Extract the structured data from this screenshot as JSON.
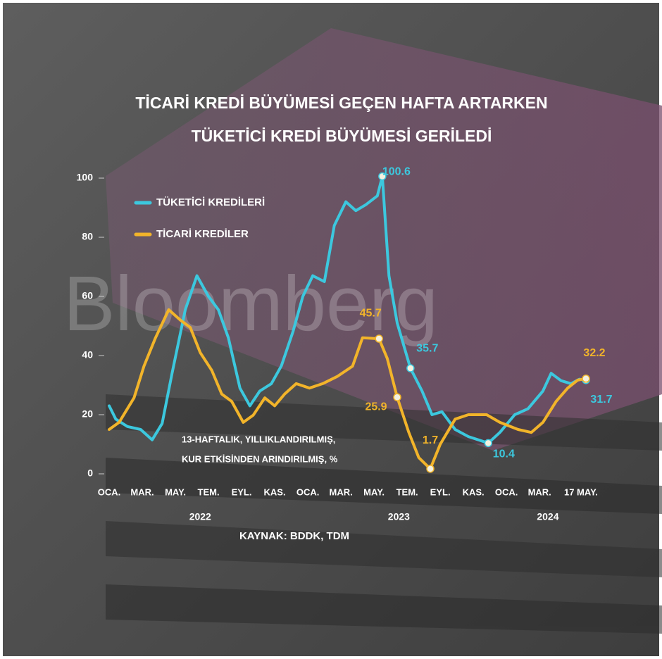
{
  "chart_data": {
    "type": "line",
    "title": [
      "TİCARİ KREDİ BÜYÜMESİ GEÇEN HAFTA ARTARKEN",
      "TÜKETİCİ KREDİ BÜYÜMESİ GERİLEDİ"
    ],
    "watermark": "Bloomberg",
    "note": [
      "13-HAFTALIK, YILLIKLANDIRILMIŞ,",
      "KUR ETKİSİNDEN ARINDIRILMIŞ, %"
    ],
    "source": "KAYNAK: BDDK, TDM",
    "xlim": [
      0,
      28.8
    ],
    "ylim": [
      0,
      100
    ],
    "yticks": [
      0,
      20,
      40,
      60,
      80,
      100
    ],
    "xticks": [
      {
        "value": 0,
        "label": "OCA."
      },
      {
        "value": 2,
        "label": "MAR."
      },
      {
        "value": 4,
        "label": "MAY."
      },
      {
        "value": 6,
        "label": "TEM."
      },
      {
        "value": 8,
        "label": "EYL."
      },
      {
        "value": 10,
        "label": "KAS."
      },
      {
        "value": 12,
        "label": "OCA."
      },
      {
        "value": 14,
        "label": "MAR."
      },
      {
        "value": 16,
        "label": "MAY."
      },
      {
        "value": 18,
        "label": "TEM."
      },
      {
        "value": 20,
        "label": "EYL."
      },
      {
        "value": 22,
        "label": "KAS."
      },
      {
        "value": 24,
        "label": "OCA."
      },
      {
        "value": 26,
        "label": "MAR."
      },
      {
        "value": 28.5,
        "label": "17 MAY."
      }
    ],
    "year_ticks": [
      {
        "value": 5.5,
        "label": "2022"
      },
      {
        "value": 17.5,
        "label": "2023"
      },
      {
        "value": 26.5,
        "label": "2024"
      }
    ],
    "series": [
      {
        "name": "TÜKETİCİ KREDİLERİ",
        "color": "#3cc8de",
        "x": [
          0,
          0.4,
          1.1,
          1.9,
          2.6,
          3.2,
          3.8,
          4.6,
          5.3,
          6.0,
          6.6,
          7.2,
          7.9,
          8.5,
          9.1,
          9.8,
          10.4,
          11.1,
          11.7,
          12.3,
          13.0,
          13.6,
          14.3,
          14.9,
          15.5,
          16.2,
          16.5,
          16.9,
          17.4,
          18.2,
          18.9,
          19.5,
          20.1,
          20.9,
          21.7,
          22.9,
          23.6,
          24.5,
          25.3,
          26.2,
          26.7,
          27.3,
          27.9,
          28.4,
          28.8
        ],
        "values": [
          23,
          18.5,
          16,
          15,
          11.5,
          17,
          34,
          55.5,
          67,
          60,
          55.5,
          46,
          29,
          23,
          28,
          30.5,
          36.5,
          48,
          60,
          67,
          65,
          84,
          92,
          89,
          91,
          94,
          100.6,
          67,
          51,
          35.7,
          28,
          20,
          21,
          15,
          12.6,
          10.4,
          14,
          20,
          22,
          28,
          34,
          31.5,
          30.5,
          32,
          31.7
        ],
        "value_labels": [
          null,
          null,
          null,
          null,
          null,
          null,
          null,
          null,
          null,
          null,
          null,
          null,
          null,
          null,
          null,
          null,
          null,
          null,
          null,
          null,
          null,
          null,
          null,
          null,
          null,
          null,
          "100.6",
          null,
          null,
          "35.7",
          null,
          null,
          null,
          null,
          null,
          "10.4",
          null,
          null,
          null,
          null,
          null,
          null,
          null,
          null,
          "31.7"
        ]
      },
      {
        "name": "TİCARİ KREDİLER",
        "color": "#f2b42a",
        "x": [
          0,
          0.6,
          1.5,
          2.1,
          2.8,
          3.6,
          4.3,
          4.9,
          5.5,
          6.2,
          6.8,
          7.4,
          8.1,
          8.7,
          9.4,
          10.0,
          10.6,
          11.3,
          12.1,
          12.9,
          13.8,
          14.7,
          15.3,
          16.3,
          16.8,
          17.4,
          18.1,
          18.7,
          19.4,
          20.0,
          20.9,
          21.7,
          22.8,
          23.6,
          24.7,
          25.5,
          26.2,
          27.0,
          27.7,
          28.3,
          28.8
        ],
        "values": [
          15,
          17.4,
          25.7,
          36.4,
          46,
          55.5,
          52,
          49.5,
          41,
          35,
          27,
          24.5,
          17.4,
          19.8,
          25.7,
          23,
          27,
          30.5,
          29,
          30.5,
          33,
          36.4,
          46,
          45.7,
          39,
          25.9,
          14,
          5.5,
          1.7,
          10,
          18.5,
          20,
          20,
          17.4,
          15,
          14,
          17.4,
          24.5,
          29,
          31.7,
          32.2
        ],
        "value_labels": [
          null,
          null,
          null,
          null,
          null,
          null,
          null,
          null,
          null,
          null,
          null,
          null,
          null,
          null,
          null,
          null,
          null,
          null,
          null,
          null,
          null,
          null,
          null,
          "45.7",
          null,
          "25.9",
          null,
          null,
          "1.7",
          null,
          null,
          null,
          null,
          null,
          null,
          null,
          null,
          null,
          null,
          null,
          "32.2"
        ]
      }
    ]
  }
}
